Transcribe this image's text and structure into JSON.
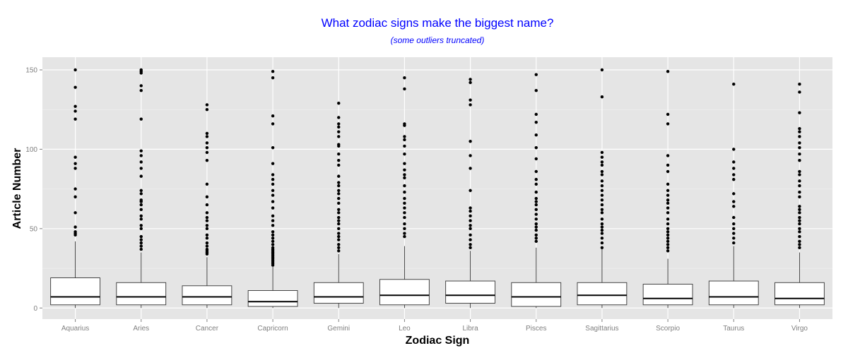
{
  "chart_data": {
    "type": "boxplot",
    "title": "What zodiac signs make the biggest name?",
    "subtitle": "(some outliers truncated)",
    "xlabel": "Zodiac Sign",
    "ylabel": "Article Number",
    "ylim": [
      -7,
      158
    ],
    "yticks": [
      0,
      50,
      100,
      150
    ],
    "grid": true,
    "panel_background": "#e5e5e5",
    "grid_color": "#ffffff",
    "title_color": "#0000ff",
    "categories": [
      "Aquarius",
      "Aries",
      "Cancer",
      "Capricorn",
      "Gemini",
      "Leo",
      "Libra",
      "Pisces",
      "Sagittarius",
      "Scorpio",
      "Taurus",
      "Virgo"
    ],
    "boxes": [
      {
        "q1": 2,
        "median": 7,
        "q3": 19,
        "whisker_low": 0,
        "whisker_high": 42,
        "outliers": [
          46,
          47,
          48,
          51,
          60,
          70,
          75,
          88,
          91,
          95,
          119,
          124,
          127,
          139,
          150
        ]
      },
      {
        "q1": 2,
        "median": 7,
        "q3": 16,
        "whisker_low": 0,
        "whisker_high": 35,
        "outliers": [
          37,
          39,
          41,
          43,
          45,
          50,
          52,
          56,
          58,
          62,
          65,
          67,
          68,
          72,
          74,
          83,
          88,
          92,
          96,
          99,
          119,
          137,
          140,
          148,
          149,
          150
        ]
      },
      {
        "q1": 2,
        "median": 7,
        "q3": 14,
        "whisker_low": 0,
        "whisker_high": 32,
        "outliers": [
          34,
          35,
          36,
          37,
          39,
          41,
          44,
          46,
          50,
          52,
          55,
          57,
          60,
          65,
          70,
          78,
          93,
          98,
          101,
          104,
          108,
          110,
          125,
          128
        ]
      },
      {
        "q1": 1,
        "median": 4,
        "q3": 11,
        "whisker_low": 0,
        "whisker_high": 26,
        "outliers": [
          27,
          28,
          29,
          30,
          31,
          32,
          33,
          34,
          35,
          36,
          37,
          38,
          40,
          42,
          44,
          46,
          48,
          52,
          55,
          58,
          63,
          67,
          71,
          74,
          78,
          81,
          84,
          91,
          101,
          116,
          121,
          145,
          149
        ]
      },
      {
        "q1": 3,
        "median": 7,
        "q3": 16,
        "whisker_low": 0,
        "whisker_high": 34,
        "outliers": [
          36,
          38,
          40,
          43,
          45,
          47,
          50,
          53,
          55,
          57,
          60,
          62,
          66,
          69,
          72,
          74,
          77,
          79,
          83,
          90,
          93,
          97,
          102,
          103,
          108,
          111,
          114,
          116,
          120,
          129
        ]
      },
      {
        "q1": 2,
        "median": 8,
        "q3": 18,
        "whisker_low": 0,
        "whisker_high": 39,
        "outliers": [
          45,
          47,
          50,
          53,
          57,
          60,
          63,
          66,
          69,
          73,
          77,
          82,
          84,
          87,
          91,
          97,
          102,
          106,
          108,
          115,
          116,
          138,
          145
        ]
      },
      {
        "q1": 3,
        "median": 8,
        "q3": 17,
        "whisker_low": 0,
        "whisker_high": 36,
        "outliers": [
          38,
          40,
          43,
          46,
          50,
          52,
          55,
          58,
          61,
          63,
          74,
          88,
          96,
          105,
          128,
          131,
          142,
          144
        ]
      },
      {
        "q1": 1,
        "median": 7,
        "q3": 16,
        "whisker_low": 0,
        "whisker_high": 38,
        "outliers": [
          42,
          44,
          46,
          49,
          51,
          53,
          56,
          59,
          62,
          65,
          67,
          69,
          73,
          78,
          81,
          86,
          94,
          101,
          109,
          117,
          122,
          137,
          147
        ]
      },
      {
        "q1": 2,
        "median": 8,
        "q3": 16,
        "whisker_low": 0,
        "whisker_high": 38,
        "outliers": [
          38,
          41,
          44,
          47,
          49,
          51,
          53,
          56,
          60,
          62,
          65,
          68,
          71,
          74,
          77,
          80,
          84,
          86,
          90,
          92,
          95,
          98,
          133,
          150
        ]
      },
      {
        "q1": 2,
        "median": 6,
        "q3": 15,
        "whisker_low": 0,
        "whisker_high": 31,
        "outliers": [
          36,
          38,
          40,
          42,
          44,
          46,
          48,
          50,
          53,
          56,
          60,
          63,
          66,
          68,
          71,
          74,
          78,
          86,
          90,
          96,
          116,
          122,
          149
        ]
      },
      {
        "q1": 2,
        "median": 7,
        "q3": 17,
        "whisker_low": 0,
        "whisker_high": 39,
        "outliers": [
          41,
          44,
          47,
          50,
          53,
          57,
          64,
          67,
          72,
          81,
          84,
          88,
          92,
          100,
          141
        ]
      },
      {
        "q1": 2,
        "median": 6,
        "q3": 16,
        "whisker_low": 0,
        "whisker_high": 35,
        "outliers": [
          38,
          40,
          42,
          45,
          48,
          50,
          53,
          55,
          57,
          60,
          62,
          64,
          70,
          73,
          77,
          80,
          84,
          86,
          93,
          97,
          101,
          104,
          108,
          111,
          113,
          123,
          136,
          141
        ]
      }
    ]
  }
}
